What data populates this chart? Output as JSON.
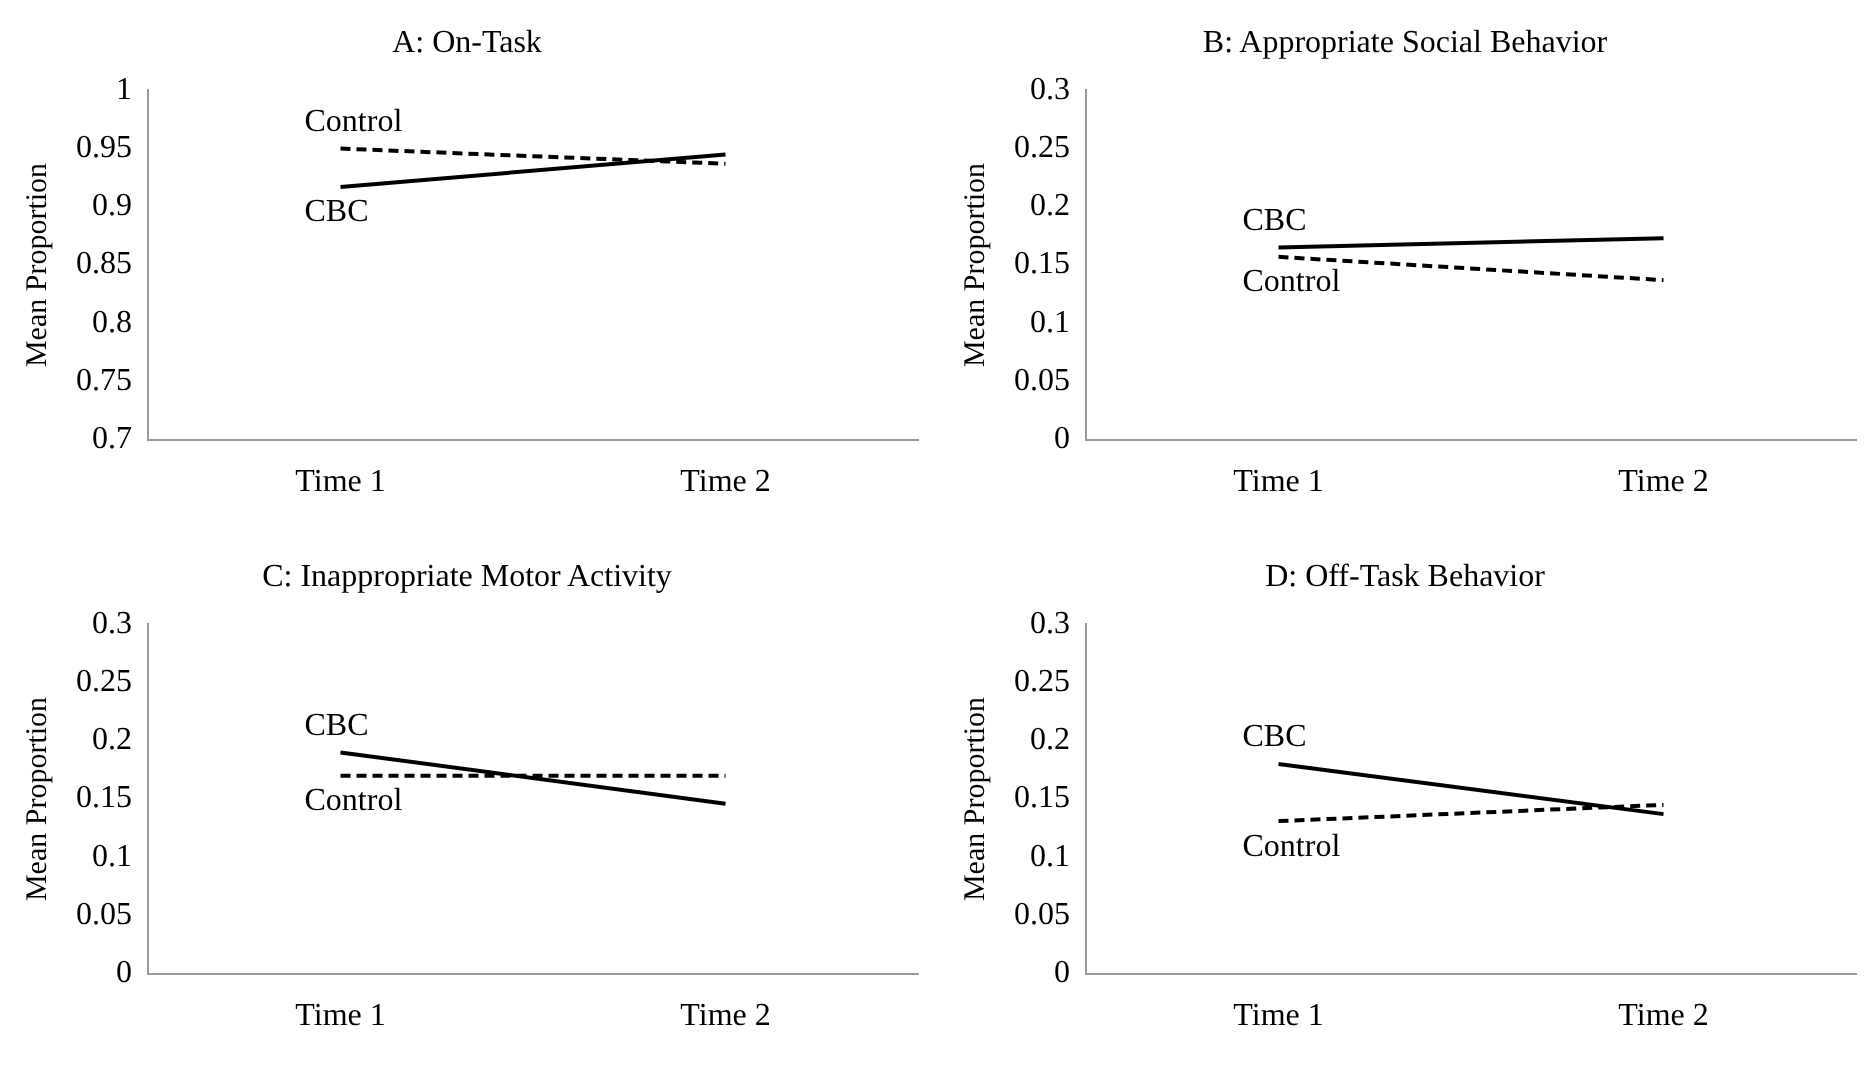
{
  "chart_data": [
    {
      "type": "line",
      "title": "A: On-Task",
      "ylabel": "Mean Proportion",
      "categories": [
        "Time 1",
        "Time 2"
      ],
      "series": [
        {
          "name": "CBC",
          "color": "#000000",
          "line_style": "solid",
          "values": [
            0.917,
            0.945
          ]
        },
        {
          "name": "Control",
          "color": "#000000",
          "line_style": "dashed",
          "values": [
            0.95,
            0.937
          ]
        }
      ],
      "ylim": [
        0.7,
        1
      ],
      "yticks": [
        0.7,
        0.75,
        0.8,
        0.85,
        0.9,
        0.95,
        1
      ],
      "grid": false,
      "legend": false,
      "marker": "none"
    },
    {
      "type": "line",
      "title": "B: Appropriate Social Behavior",
      "ylabel": "Mean Proportion",
      "categories": [
        "Time 1",
        "Time 2"
      ],
      "series": [
        {
          "name": "CBC",
          "color": "#000000",
          "line_style": "solid",
          "values": [
            0.165,
            0.173
          ]
        },
        {
          "name": "Control",
          "color": "#000000",
          "line_style": "dashed",
          "values": [
            0.157,
            0.137
          ]
        }
      ],
      "ylim": [
        0,
        0.3
      ],
      "yticks": [
        0,
        0.05,
        0.1,
        0.15,
        0.2,
        0.25,
        0.3
      ],
      "grid": false,
      "legend": false,
      "marker": "none"
    },
    {
      "type": "line",
      "title": "C: Inappropriate Motor Activity",
      "ylabel": "Mean Proportion",
      "categories": [
        "Time 1",
        "Time 2"
      ],
      "series": [
        {
          "name": "CBC",
          "color": "#000000",
          "line_style": "solid",
          "values": [
            0.19,
            0.146
          ]
        },
        {
          "name": "Control",
          "color": "#000000",
          "line_style": "dashed",
          "values": [
            0.17,
            0.17
          ]
        }
      ],
      "ylim": [
        0,
        0.3
      ],
      "yticks": [
        0,
        0.05,
        0.1,
        0.15,
        0.2,
        0.25,
        0.3
      ],
      "grid": false,
      "legend": false,
      "marker": "none"
    },
    {
      "type": "line",
      "title": "D: Off-Task Behavior",
      "ylabel": "Mean Proportion",
      "categories": [
        "Time 1",
        "Time 2"
      ],
      "series": [
        {
          "name": "CBC",
          "color": "#000000",
          "line_style": "solid",
          "values": [
            0.18,
            0.137
          ]
        },
        {
          "name": "Control",
          "color": "#000000",
          "line_style": "dashed",
          "values": [
            0.131,
            0.145
          ]
        }
      ],
      "ylim": [
        0,
        0.3
      ],
      "yticks": [
        0,
        0.05,
        0.1,
        0.15,
        0.2,
        0.25,
        0.3
      ],
      "grid": false,
      "legend": false,
      "marker": "none"
    }
  ]
}
